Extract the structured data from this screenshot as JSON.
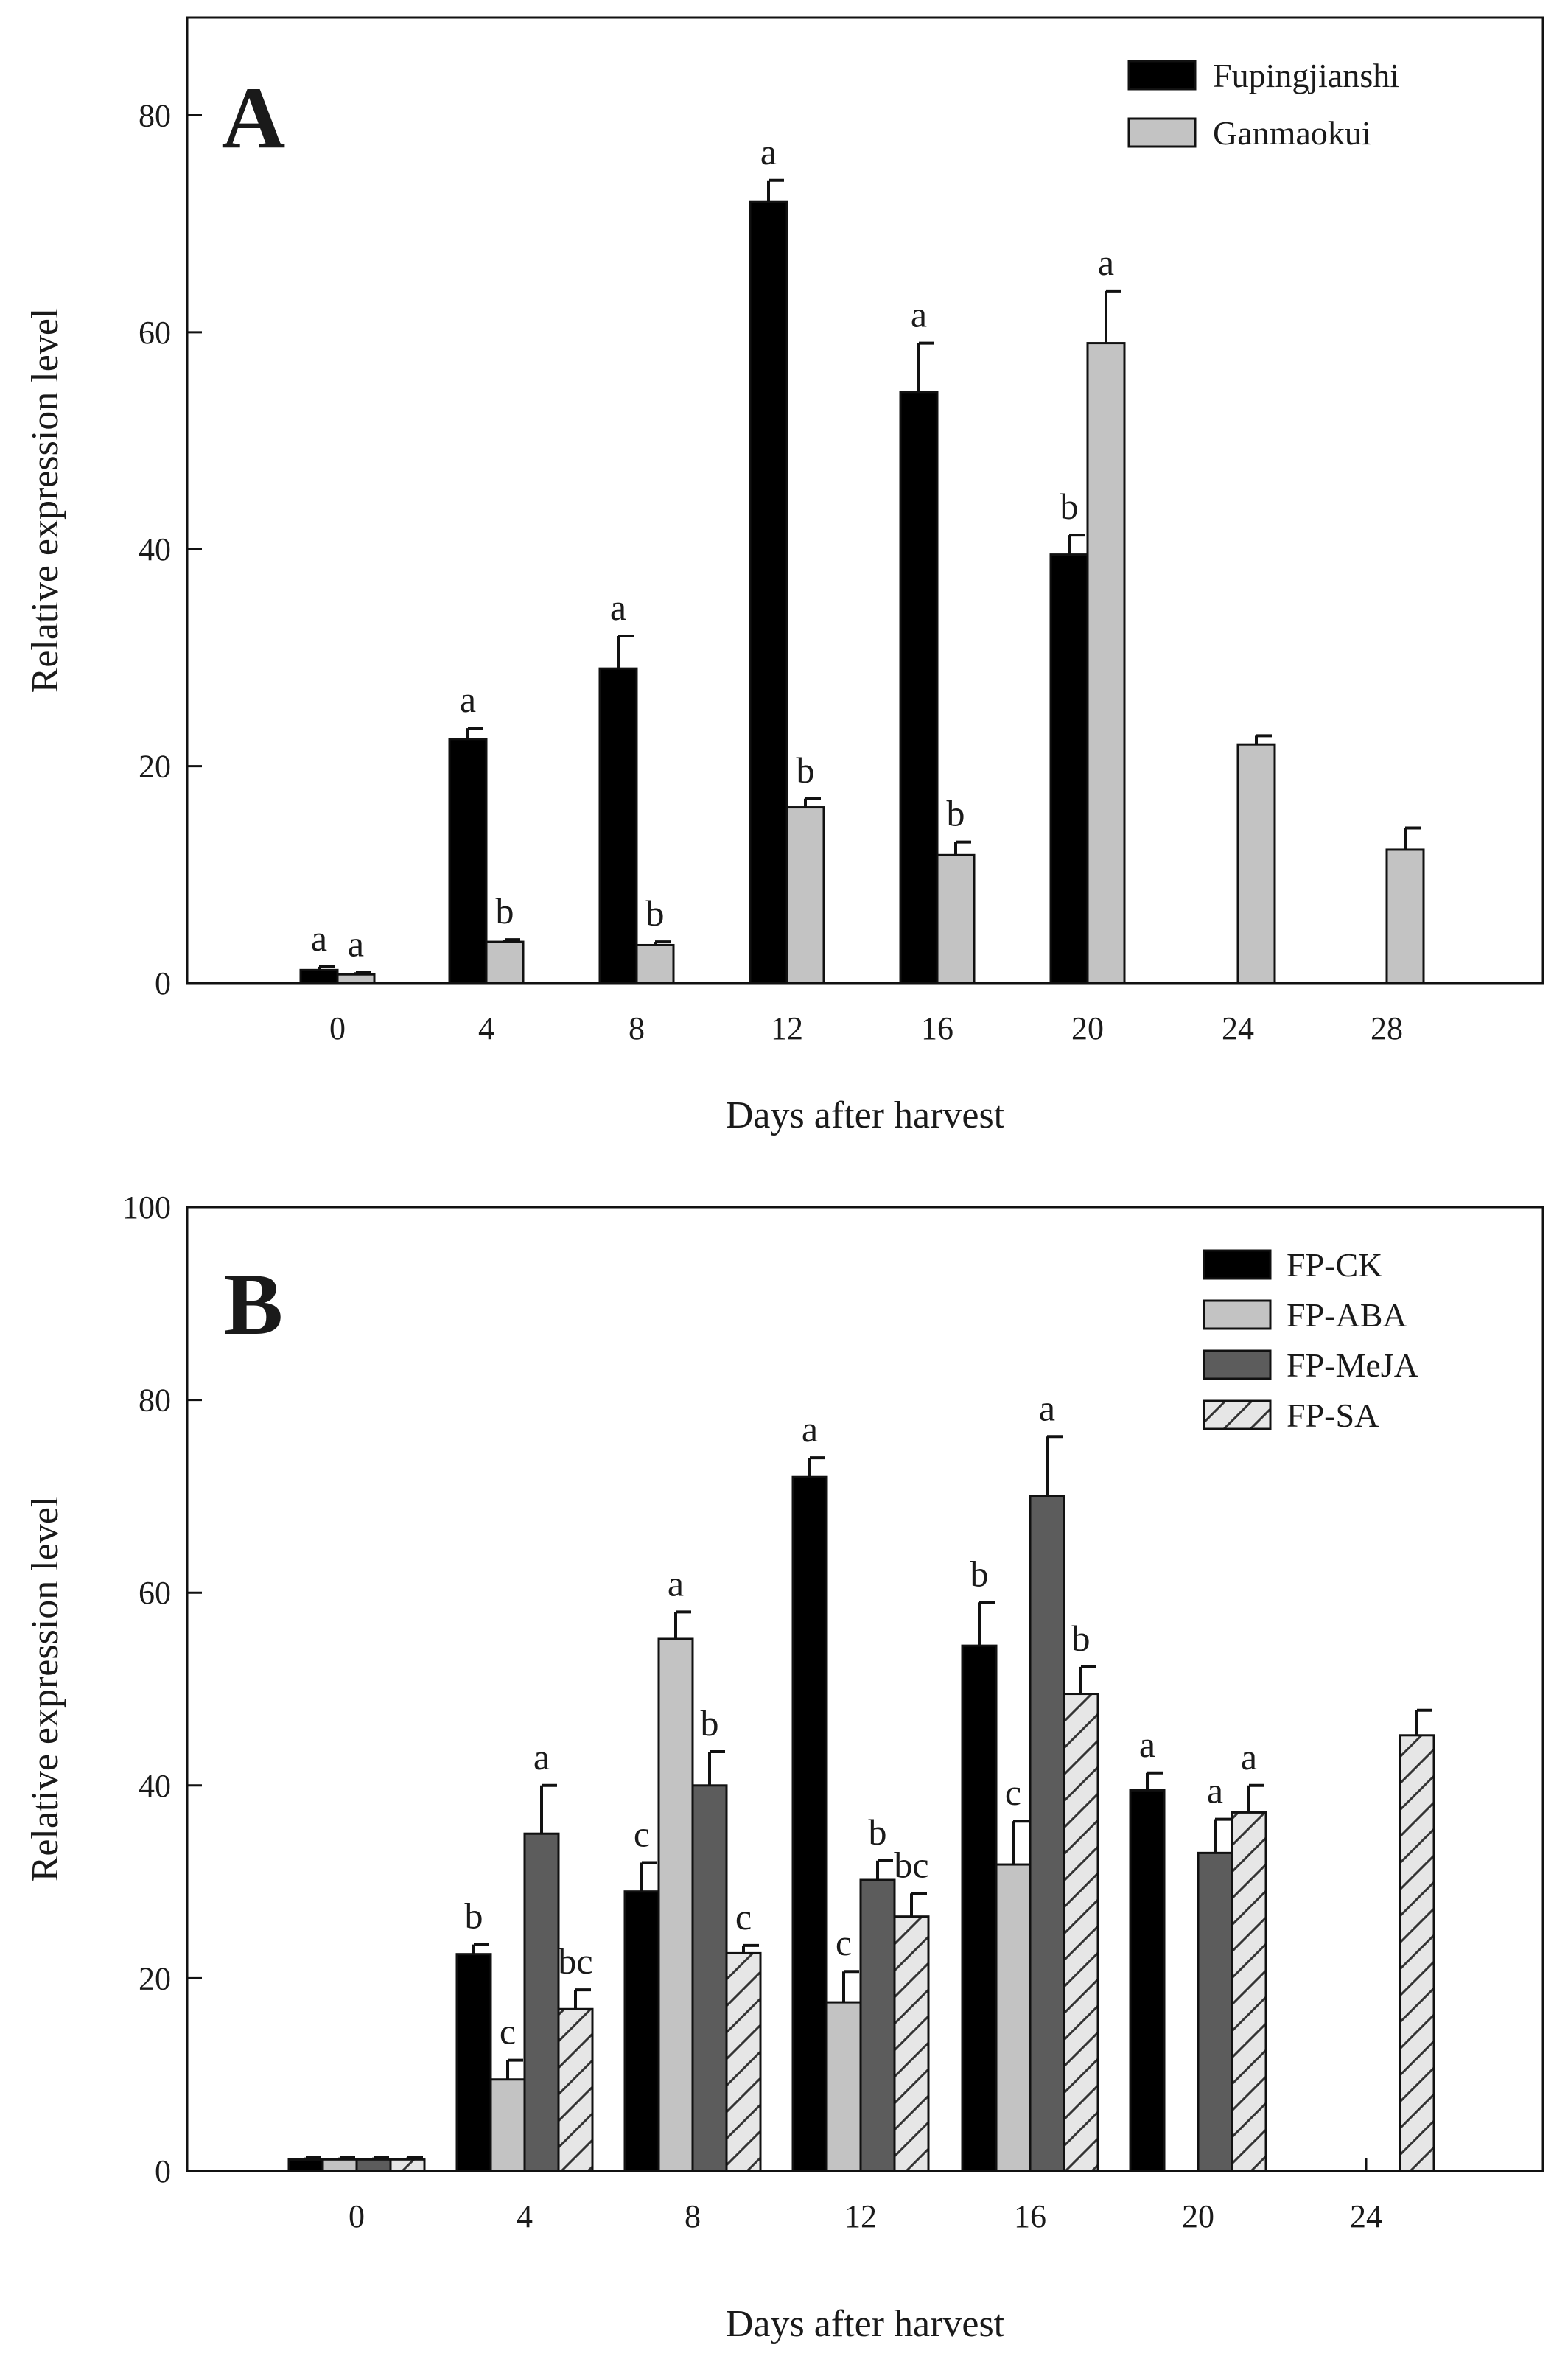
{
  "chart_data": [
    {
      "type": "bar",
      "panel_label": "A",
      "xlabel": "Days after harvest",
      "ylabel": "Relative expression level",
      "ylim": [
        0,
        89
      ],
      "yticks": [
        "0",
        "20",
        "40",
        "60",
        "80"
      ],
      "categories": [
        "0",
        "4",
        "8",
        "12",
        "16",
        "20",
        "24",
        "28"
      ],
      "legend_position": "top-right",
      "grid": false,
      "series": [
        {
          "name": "Fupingjianshi",
          "fill": "#000000",
          "values": [
            1.2,
            22.5,
            29,
            72,
            54.5,
            39.5,
            null,
            null
          ],
          "errors": [
            0.3,
            1,
            3,
            2,
            4.5,
            1.8,
            null,
            null
          ],
          "labels": [
            "a",
            "a",
            "a",
            "a",
            "a",
            "b",
            "",
            ""
          ]
        },
        {
          "name": "Ganmaokui",
          "fill": "#c3c3c3",
          "values": [
            0.8,
            3.8,
            3.5,
            16.2,
            11.8,
            59,
            22,
            12.3
          ],
          "errors": [
            0.2,
            0.2,
            0.3,
            0.8,
            1.2,
            4.8,
            0.8,
            2
          ],
          "labels": [
            "a",
            "b",
            "b",
            "b",
            "b",
            "a",
            "",
            ""
          ]
        }
      ]
    },
    {
      "type": "bar",
      "panel_label": "B",
      "xlabel": "Days after harvest",
      "ylabel": "Relative expression level",
      "ylim": [
        0,
        100
      ],
      "yticks": [
        "0",
        "20",
        "40",
        "60",
        "80",
        "100"
      ],
      "categories": [
        "0",
        "4",
        "8",
        "12",
        "16",
        "20",
        "24"
      ],
      "legend_position": "top-right",
      "grid": false,
      "series": [
        {
          "name": "FP-CK",
          "fill": "#000000",
          "values": [
            1.2,
            22.5,
            29,
            72,
            54.5,
            39.5,
            null
          ],
          "errors": [
            0.2,
            1,
            3,
            2,
            4.5,
            1.8,
            null
          ],
          "labels": [
            "",
            "b",
            "c",
            "a",
            "b",
            "a",
            ""
          ]
        },
        {
          "name": "FP-ABA",
          "fill": "#c3c3c3",
          "values": [
            1.2,
            9.5,
            55.2,
            17.5,
            31.8,
            null,
            null
          ],
          "errors": [
            0.2,
            2,
            2.8,
            3.2,
            4.5,
            null,
            null
          ],
          "labels": [
            "",
            "c",
            "a",
            "c",
            "c",
            "",
            ""
          ]
        },
        {
          "name": "FP-MeJA",
          "fill": "#5c5c5c",
          "values": [
            1.2,
            35,
            40,
            30.2,
            70,
            33,
            null
          ],
          "errors": [
            0.2,
            5,
            3.5,
            2,
            6.2,
            3.5,
            null
          ],
          "labels": [
            "",
            "a",
            "b",
            "b",
            "a",
            "a",
            ""
          ]
        },
        {
          "name": "FP-SA",
          "fill": "hatch",
          "values": [
            1.2,
            16.8,
            22.6,
            26.4,
            49.5,
            37.2,
            45.2
          ],
          "errors": [
            0.2,
            2,
            0.8,
            2.4,
            2.8,
            2.8,
            2.6
          ],
          "labels": [
            "",
            "bc",
            "c",
            "bc",
            "b",
            "a",
            ""
          ]
        }
      ]
    }
  ]
}
